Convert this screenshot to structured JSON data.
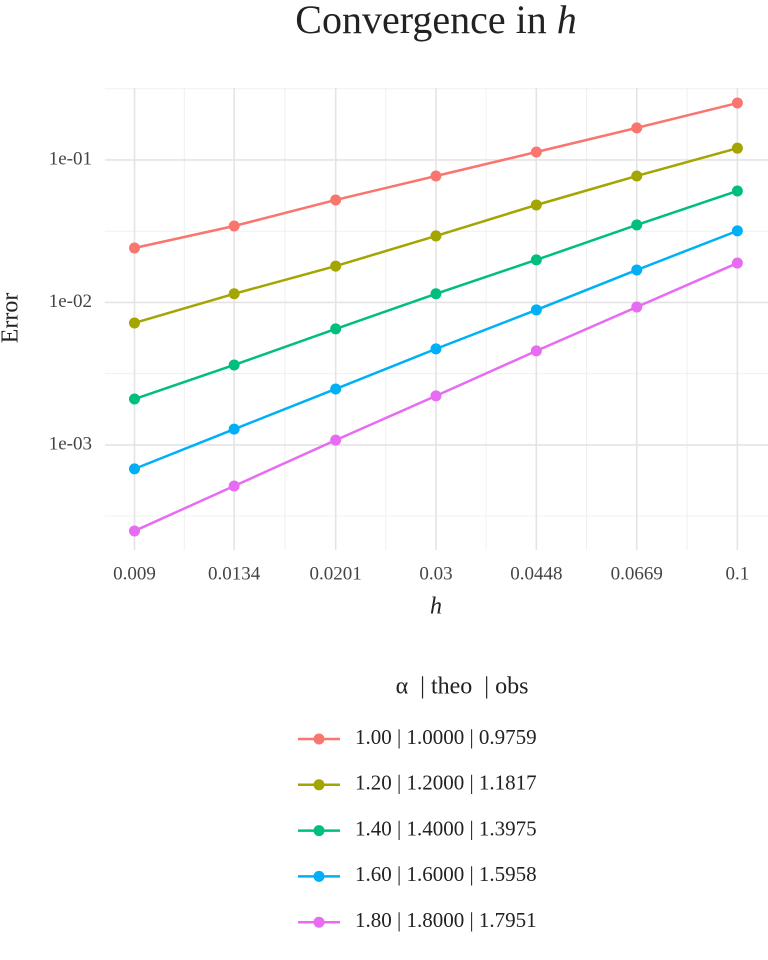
{
  "chart_data": {
    "type": "line",
    "title": "Convergence in h",
    "x_label": "h",
    "y_label": "Error",
    "x": [
      0.009,
      0.0134,
      0.0201,
      0.03,
      0.0448,
      0.0669,
      0.1
    ],
    "xlim": [
      0.008,
      0.113
    ],
    "xticks": [
      0.009,
      0.0134,
      0.0201,
      0.03,
      0.0448,
      0.0669,
      0.1
    ],
    "x_log": true,
    "ylim": [
      0.000183,
      0.32
    ],
    "yticks": [
      {
        "value": 0.1,
        "label": "1e-01"
      },
      {
        "value": 0.01,
        "label": "1e-02"
      },
      {
        "value": 0.001,
        "label": "1e-03"
      }
    ],
    "y_log": true,
    "grid": true,
    "legend_title": "α  | theo  | obs",
    "legend_position": "bottom",
    "series": [
      {
        "name": "1.00 | 1.0000 | 0.9759",
        "color": "#F8766D",
        "values": [
          0.0241,
          0.0344,
          0.0524,
          0.0772,
          0.1137,
          0.168,
          0.251
        ]
      },
      {
        "name": "1.20 | 1.2000 | 1.1817",
        "color": "#A3A500",
        "values": [
          0.00718,
          0.0115,
          0.018,
          0.0293,
          0.0483,
          0.0772,
          0.121
        ]
      },
      {
        "name": "1.40 | 1.4000 | 1.3975",
        "color": "#00BF7D",
        "values": [
          0.0021,
          0.00364,
          0.00652,
          0.0115,
          0.0199,
          0.035,
          0.0606
        ]
      },
      {
        "name": "1.60 | 1.6000 | 1.5958",
        "color": "#00B0F6",
        "values": [
          0.000679,
          0.00129,
          0.00247,
          0.00472,
          0.00886,
          0.0169,
          0.0318
        ]
      },
      {
        "name": "1.80 | 1.8000 | 1.7951",
        "color": "#E76BF3",
        "values": [
          0.000249,
          0.000515,
          0.00108,
          0.00221,
          0.00457,
          0.00929,
          0.0189
        ]
      }
    ]
  }
}
